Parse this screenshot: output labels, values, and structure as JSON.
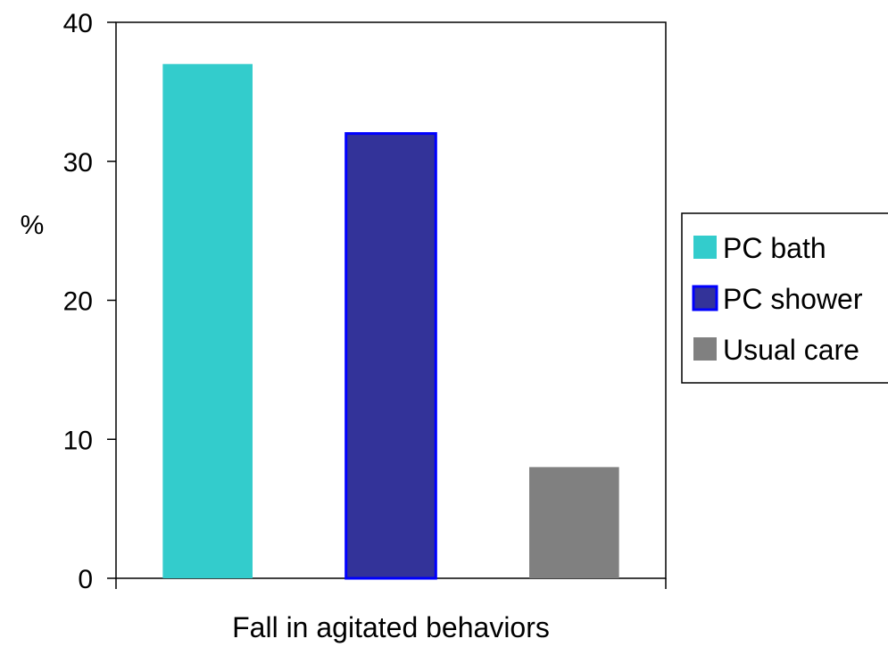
{
  "chart_data": {
    "type": "bar",
    "title": "",
    "xlabel": "Fall in agitated behaviors",
    "ylabel": "%",
    "ylim": [
      0,
      40
    ],
    "yticks": [
      "0",
      "10",
      "20",
      "30",
      "40"
    ],
    "grid": false,
    "legend_position": "right",
    "series": [
      {
        "name": "PC bath",
        "value": 37,
        "color": "#33CCCC",
        "stroke": "none"
      },
      {
        "name": "PC shower",
        "value": 32,
        "color": "#333399",
        "stroke": "#0000FF"
      },
      {
        "name": "Usual care",
        "value": 8,
        "color": "#808080",
        "stroke": "none"
      }
    ]
  }
}
